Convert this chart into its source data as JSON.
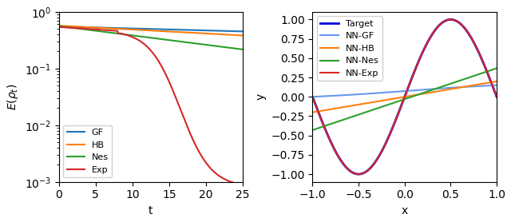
{
  "left": {
    "xlabel": "t",
    "ylabel": "E(\\rho_t)",
    "xlim": [
      0,
      25
    ],
    "ylim": [
      0.001,
      1.0
    ],
    "lines": [
      {
        "label": "GF",
        "color": "#1f77b4"
      },
      {
        "label": "HB",
        "color": "#ff7f0e"
      },
      {
        "label": "Nes",
        "color": "#2ca02c"
      },
      {
        "label": "Exp",
        "color": "#d62728"
      }
    ],
    "legend_loc": "lower left"
  },
  "right": {
    "xlabel": "x",
    "ylabel": "y",
    "xlim": [
      -1.0,
      1.0
    ],
    "ylim": [
      -1.1,
      1.1
    ],
    "yticks": [
      -1.0,
      -0.75,
      -0.5,
      -0.25,
      0.0,
      0.25,
      0.5,
      0.75,
      1.0
    ],
    "lines": [
      {
        "label": "Target",
        "color": "#0000dd",
        "lw": 2.0
      },
      {
        "label": "NN-GF",
        "color": "#6699ee",
        "lw": 1.5
      },
      {
        "label": "NN-HB",
        "color": "#ff7f0e",
        "lw": 1.5
      },
      {
        "label": "NN-Nes",
        "color": "#2ca02c",
        "lw": 1.5
      },
      {
        "label": "NN-Exp",
        "color": "#d62728",
        "lw": 1.5
      }
    ],
    "legend_loc": "upper left"
  }
}
